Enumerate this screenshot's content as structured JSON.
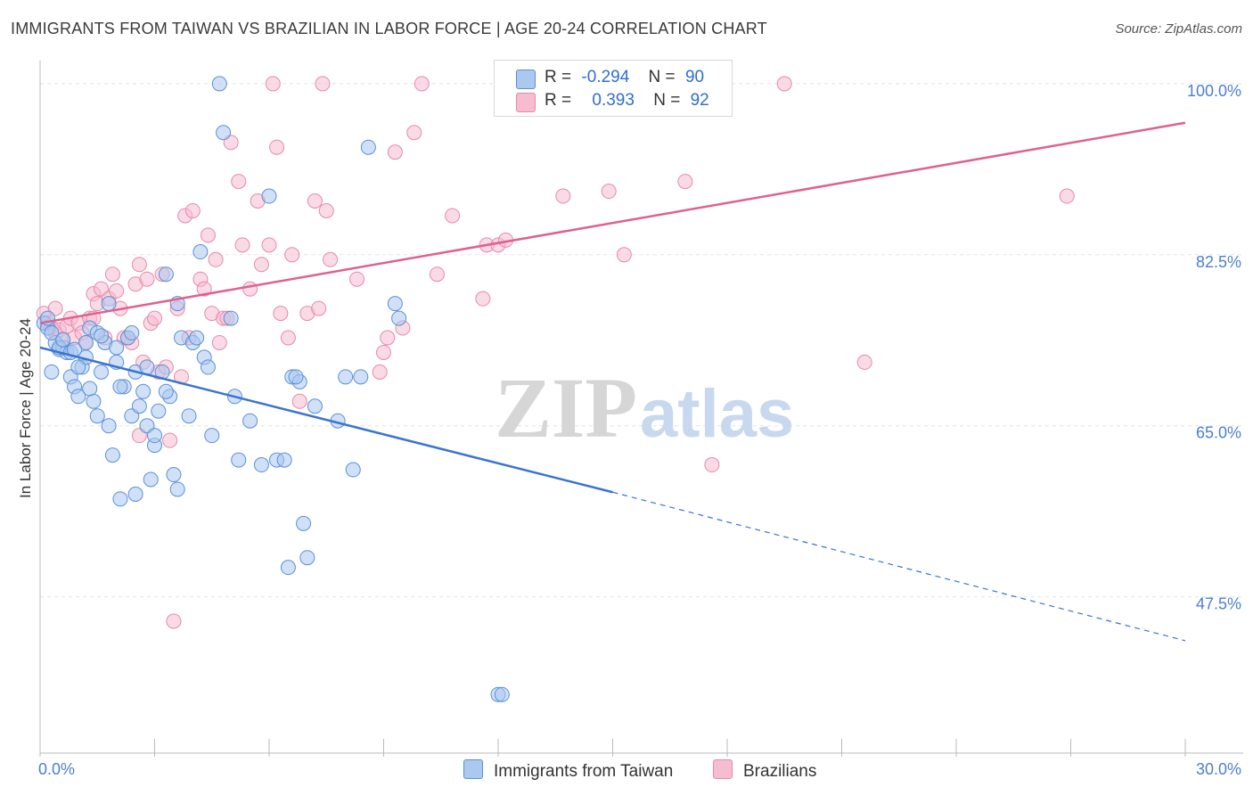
{
  "title": "IMMIGRANTS FROM TAIWAN VS BRAZILIAN IN LABOR FORCE | AGE 20-24 CORRELATION CHART",
  "source": "Source: ZipAtlas.com",
  "watermark": {
    "zip": "ZIP",
    "atlas": "atlas"
  },
  "legend": {
    "rows": [
      {
        "r_label": "R =",
        "r_value": "-0.294",
        "n_label": "N =",
        "n_value": "90"
      },
      {
        "r_label": "R =",
        "r_value": "0.393",
        "n_label": "N =",
        "n_value": "92"
      }
    ]
  },
  "bottom_legend": [
    "Immigrants from Taiwan",
    "Brazilians"
  ],
  "colors": {
    "taiwan_fill": "#aac8f0",
    "taiwan_stroke": "#5b8fd8",
    "taiwan_line": "#3a74d0",
    "brazil_fill": "#f6bcd0",
    "brazil_stroke": "#e68aaa",
    "brazil_line": "#e0608e",
    "grid": "#e4e4e4",
    "tick_text": "#4a7fd0"
  },
  "chart_data": {
    "type": "scatter",
    "title": "IMMIGRANTS FROM TAIWAN VS BRAZILIAN IN LABOR FORCE | AGE 20-24 CORRELATION CHART",
    "xlabel": "",
    "ylabel": "In Labor Force | Age 20-24",
    "xlim": [
      0,
      30
    ],
    "ylim": [
      31.5,
      102
    ],
    "x_tick_labels": [
      "0.0%",
      "30.0%"
    ],
    "y_ticks": [
      47.5,
      65.0,
      82.5,
      100.0
    ],
    "y_tick_labels": [
      "47.5%",
      "65.0%",
      "82.5%",
      "100.0%"
    ],
    "grid": true,
    "legend_position": "top-center",
    "series": [
      {
        "name": "Immigrants from Taiwan",
        "r": -0.294,
        "n": 90,
        "trend": {
          "x_start": 0,
          "y_start": 73.0,
          "x_solid_end": 15,
          "y_solid_end": 58.2,
          "x_end": 30,
          "y_end": 43.0
        },
        "points": [
          [
            0.1,
            75.5
          ],
          [
            0.2,
            75.0
          ],
          [
            0.3,
            70.5
          ],
          [
            0.4,
            73.5
          ],
          [
            0.5,
            72.8
          ],
          [
            0.6,
            73.0
          ],
          [
            0.7,
            72.5
          ],
          [
            0.8,
            70.0
          ],
          [
            0.9,
            69.0
          ],
          [
            1.0,
            68.0
          ],
          [
            1.1,
            71.0
          ],
          [
            1.2,
            72.0
          ],
          [
            1.3,
            75.0
          ],
          [
            1.4,
            67.5
          ],
          [
            1.5,
            66.0
          ],
          [
            1.6,
            70.5
          ],
          [
            1.7,
            73.5
          ],
          [
            1.8,
            65.0
          ],
          [
            1.9,
            62.0
          ],
          [
            2.0,
            71.5
          ],
          [
            2.1,
            57.5
          ],
          [
            2.2,
            69.0
          ],
          [
            2.3,
            74.0
          ],
          [
            2.4,
            66.0
          ],
          [
            2.5,
            58.0
          ],
          [
            2.6,
            67.0
          ],
          [
            2.7,
            68.5
          ],
          [
            2.8,
            65.0
          ],
          [
            2.9,
            59.5
          ],
          [
            3.0,
            63.0
          ],
          [
            3.1,
            66.5
          ],
          [
            3.2,
            70.5
          ],
          [
            3.3,
            80.5
          ],
          [
            3.4,
            68.0
          ],
          [
            3.5,
            60.0
          ],
          [
            3.6,
            58.5
          ],
          [
            3.7,
            74.0
          ],
          [
            3.9,
            66.0
          ],
          [
            4.0,
            73.5
          ],
          [
            4.2,
            82.8
          ],
          [
            4.3,
            72.0
          ],
          [
            4.5,
            64.0
          ],
          [
            4.7,
            100.0
          ],
          [
            4.8,
            95.0
          ],
          [
            5.0,
            76.0
          ],
          [
            5.1,
            68.0
          ],
          [
            5.5,
            65.5
          ],
          [
            5.8,
            61.0
          ],
          [
            6.0,
            88.5
          ],
          [
            6.2,
            61.5
          ],
          [
            6.4,
            61.5
          ],
          [
            6.6,
            70.0
          ],
          [
            6.8,
            69.5
          ],
          [
            6.9,
            55.0
          ],
          [
            7.0,
            51.5
          ],
          [
            7.2,
            67.0
          ],
          [
            6.5,
            50.5
          ],
          [
            7.8,
            65.5
          ],
          [
            8.0,
            70.0
          ],
          [
            8.2,
            60.5
          ],
          [
            8.4,
            70.0
          ],
          [
            8.6,
            93.5
          ],
          [
            9.3,
            77.5
          ],
          [
            9.4,
            76.0
          ],
          [
            12.0,
            37.5
          ],
          [
            12.1,
            37.5
          ],
          [
            0.5,
            73.0
          ],
          [
            0.8,
            72.5
          ],
          [
            1.0,
            71.0
          ],
          [
            1.5,
            74.5
          ],
          [
            2.0,
            73.0
          ],
          [
            2.5,
            70.5
          ],
          [
            3.0,
            64.0
          ],
          [
            1.8,
            77.5
          ],
          [
            2.8,
            71.0
          ],
          [
            3.6,
            77.5
          ],
          [
            4.4,
            71.0
          ],
          [
            6.7,
            70.0
          ],
          [
            0.3,
            74.5
          ],
          [
            1.2,
            73.5
          ],
          [
            2.1,
            69.0
          ],
          [
            3.3,
            68.5
          ],
          [
            4.1,
            74.0
          ],
          [
            0.6,
            73.8
          ],
          [
            1.6,
            74.2
          ],
          [
            2.4,
            74.5
          ],
          [
            0.9,
            72.8
          ],
          [
            1.3,
            68.8
          ],
          [
            5.2,
            61.5
          ],
          [
            0.2,
            76.0
          ]
        ]
      },
      {
        "name": "Brazilians",
        "r": 0.393,
        "n": 92,
        "trend": {
          "x_start": 0,
          "y_start": 75.5,
          "x_end": 30,
          "y_end": 96.0
        },
        "points": [
          [
            0.1,
            76.5
          ],
          [
            0.2,
            75.5
          ],
          [
            0.3,
            75.0
          ],
          [
            0.4,
            74.5
          ],
          [
            0.5,
            74.8
          ],
          [
            0.6,
            73.8
          ],
          [
            0.7,
            75.2
          ],
          [
            0.8,
            76.0
          ],
          [
            0.9,
            74.0
          ],
          [
            1.0,
            75.5
          ],
          [
            1.1,
            74.5
          ],
          [
            1.2,
            73.5
          ],
          [
            1.3,
            76.0
          ],
          [
            1.4,
            78.5
          ],
          [
            1.5,
            77.5
          ],
          [
            1.6,
            79.0
          ],
          [
            1.8,
            78.0
          ],
          [
            1.9,
            80.5
          ],
          [
            2.0,
            78.8
          ],
          [
            2.1,
            77.0
          ],
          [
            2.2,
            74.0
          ],
          [
            2.4,
            73.5
          ],
          [
            2.5,
            79.5
          ],
          [
            2.6,
            81.5
          ],
          [
            2.7,
            71.5
          ],
          [
            2.8,
            80.0
          ],
          [
            2.9,
            75.5
          ],
          [
            3.0,
            76.0
          ],
          [
            3.1,
            70.5
          ],
          [
            3.2,
            80.5
          ],
          [
            3.3,
            71.0
          ],
          [
            3.4,
            63.5
          ],
          [
            3.5,
            45.0
          ],
          [
            3.6,
            77.0
          ],
          [
            3.8,
            86.5
          ],
          [
            3.9,
            74.0
          ],
          [
            4.0,
            87.0
          ],
          [
            4.2,
            80.0
          ],
          [
            4.3,
            79.0
          ],
          [
            4.4,
            84.5
          ],
          [
            4.5,
            76.5
          ],
          [
            4.6,
            82.0
          ],
          [
            4.7,
            73.5
          ],
          [
            4.8,
            76.0
          ],
          [
            5.0,
            94.0
          ],
          [
            5.2,
            90.0
          ],
          [
            5.3,
            83.5
          ],
          [
            5.5,
            79.0
          ],
          [
            5.7,
            88.0
          ],
          [
            5.8,
            81.5
          ],
          [
            6.0,
            83.5
          ],
          [
            6.2,
            93.5
          ],
          [
            6.3,
            76.5
          ],
          [
            6.5,
            74.0
          ],
          [
            6.6,
            82.5
          ],
          [
            6.8,
            67.5
          ],
          [
            7.0,
            76.5
          ],
          [
            7.2,
            88.0
          ],
          [
            7.3,
            77.0
          ],
          [
            7.4,
            100.0
          ],
          [
            7.5,
            87.0
          ],
          [
            7.6,
            82.0
          ],
          [
            8.3,
            80.0
          ],
          [
            8.9,
            70.5
          ],
          [
            9.0,
            72.5
          ],
          [
            9.1,
            74.0
          ],
          [
            9.3,
            93.0
          ],
          [
            9.5,
            75.0
          ],
          [
            9.8,
            95.0
          ],
          [
            10.0,
            100.0
          ],
          [
            10.4,
            80.5
          ],
          [
            10.8,
            86.5
          ],
          [
            11.6,
            78.0
          ],
          [
            11.7,
            83.5
          ],
          [
            12.0,
            83.5
          ],
          [
            12.2,
            84.0
          ],
          [
            13.7,
            88.5
          ],
          [
            14.9,
            89.0
          ],
          [
            15.3,
            82.5
          ],
          [
            16.9,
            90.0
          ],
          [
            17.6,
            61.0
          ],
          [
            19.5,
            100.0
          ],
          [
            21.6,
            71.5
          ],
          [
            26.9,
            88.5
          ],
          [
            2.6,
            64.0
          ],
          [
            1.7,
            74.0
          ],
          [
            3.7,
            70.0
          ],
          [
            4.9,
            76.0
          ],
          [
            6.1,
            100.0
          ],
          [
            0.4,
            77.0
          ],
          [
            1.4,
            76.0
          ],
          [
            2.3,
            74.0
          ]
        ]
      }
    ]
  }
}
